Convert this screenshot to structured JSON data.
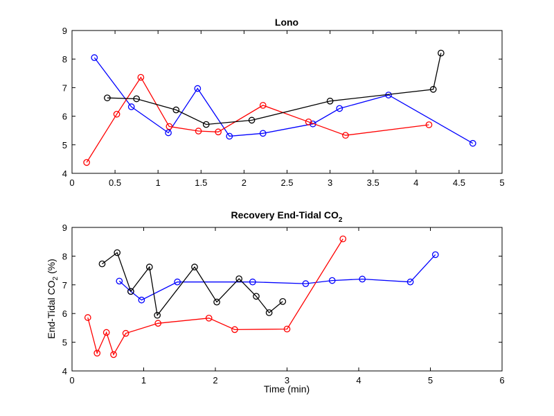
{
  "chart_data": [
    {
      "type": "line",
      "title": "Lono",
      "xlabel": "",
      "ylabel": "",
      "xlim": [
        0,
        5
      ],
      "ylim": [
        4,
        9
      ],
      "xticks": [
        "0",
        "0.5",
        "1",
        "1.5",
        "2",
        "2.5",
        "3",
        "3.5",
        "4",
        "4.5",
        "5"
      ],
      "yticks": [
        "4",
        "5",
        "6",
        "7",
        "8",
        "9"
      ],
      "grid": false,
      "series": [
        {
          "color": "#0000ff",
          "marker": "circle-open",
          "x": [
            0.26,
            0.69,
            1.12,
            1.46,
            1.83,
            2.22,
            2.8,
            3.11,
            3.68,
            4.66
          ],
          "y": [
            8.05,
            6.33,
            5.42,
            6.97,
            5.3,
            5.4,
            5.73,
            6.27,
            6.74,
            5.05
          ]
        },
        {
          "color": "#ff0000",
          "marker": "circle-open",
          "x": [
            0.17,
            0.52,
            0.8,
            1.13,
            1.47,
            1.7,
            2.22,
            2.75,
            3.18,
            4.15
          ],
          "y": [
            4.38,
            6.07,
            7.36,
            5.64,
            5.48,
            5.45,
            6.38,
            5.8,
            5.33,
            5.7
          ]
        },
        {
          "color": "#000000",
          "marker": "circle-open",
          "x": [
            0.41,
            0.75,
            1.21,
            1.56,
            2.09,
            3.0,
            4.2,
            4.29
          ],
          "y": [
            6.64,
            6.61,
            6.22,
            5.71,
            5.86,
            6.53,
            6.94,
            8.21
          ]
        }
      ]
    },
    {
      "type": "line",
      "title": "Recovery End-Tidal CO",
      "title_subscript": "2",
      "xlabel": "Time (min)",
      "ylabel": "End-Tidal CO",
      "ylabel_subscript": "2",
      "ylabel_suffix": " (%)",
      "xlim": [
        0,
        6
      ],
      "ylim": [
        4,
        9
      ],
      "xticks": [
        "0",
        "1",
        "2",
        "3",
        "4",
        "5",
        "6"
      ],
      "yticks": [
        "4",
        "5",
        "6",
        "7",
        "8",
        "9"
      ],
      "grid": false,
      "series": [
        {
          "color": "#0000ff",
          "marker": "circle-open",
          "x": [
            0.66,
            0.82,
            0.97,
            1.47,
            2.52,
            3.26,
            3.63,
            4.05,
            4.72,
            5.07
          ],
          "y": [
            7.13,
            6.77,
            6.47,
            7.1,
            7.1,
            7.04,
            7.15,
            7.2,
            7.1,
            8.05
          ]
        },
        {
          "color": "#ff0000",
          "marker": "circle-open",
          "x": [
            0.22,
            0.35,
            0.48,
            0.58,
            0.75,
            1.2,
            1.91,
            2.27,
            3.0,
            3.78
          ],
          "y": [
            5.86,
            4.62,
            5.34,
            4.57,
            5.31,
            5.66,
            5.84,
            5.44,
            5.46,
            8.6
          ]
        },
        {
          "color": "#000000",
          "marker": "circle-open",
          "x": [
            0.42,
            0.63,
            0.82,
            1.08,
            1.19,
            1.71,
            2.02,
            2.33,
            2.57,
            2.75,
            2.94
          ],
          "y": [
            7.73,
            8.12,
            6.77,
            7.62,
            5.94,
            7.62,
            6.4,
            7.21,
            6.6,
            6.03,
            6.42
          ]
        }
      ]
    }
  ]
}
